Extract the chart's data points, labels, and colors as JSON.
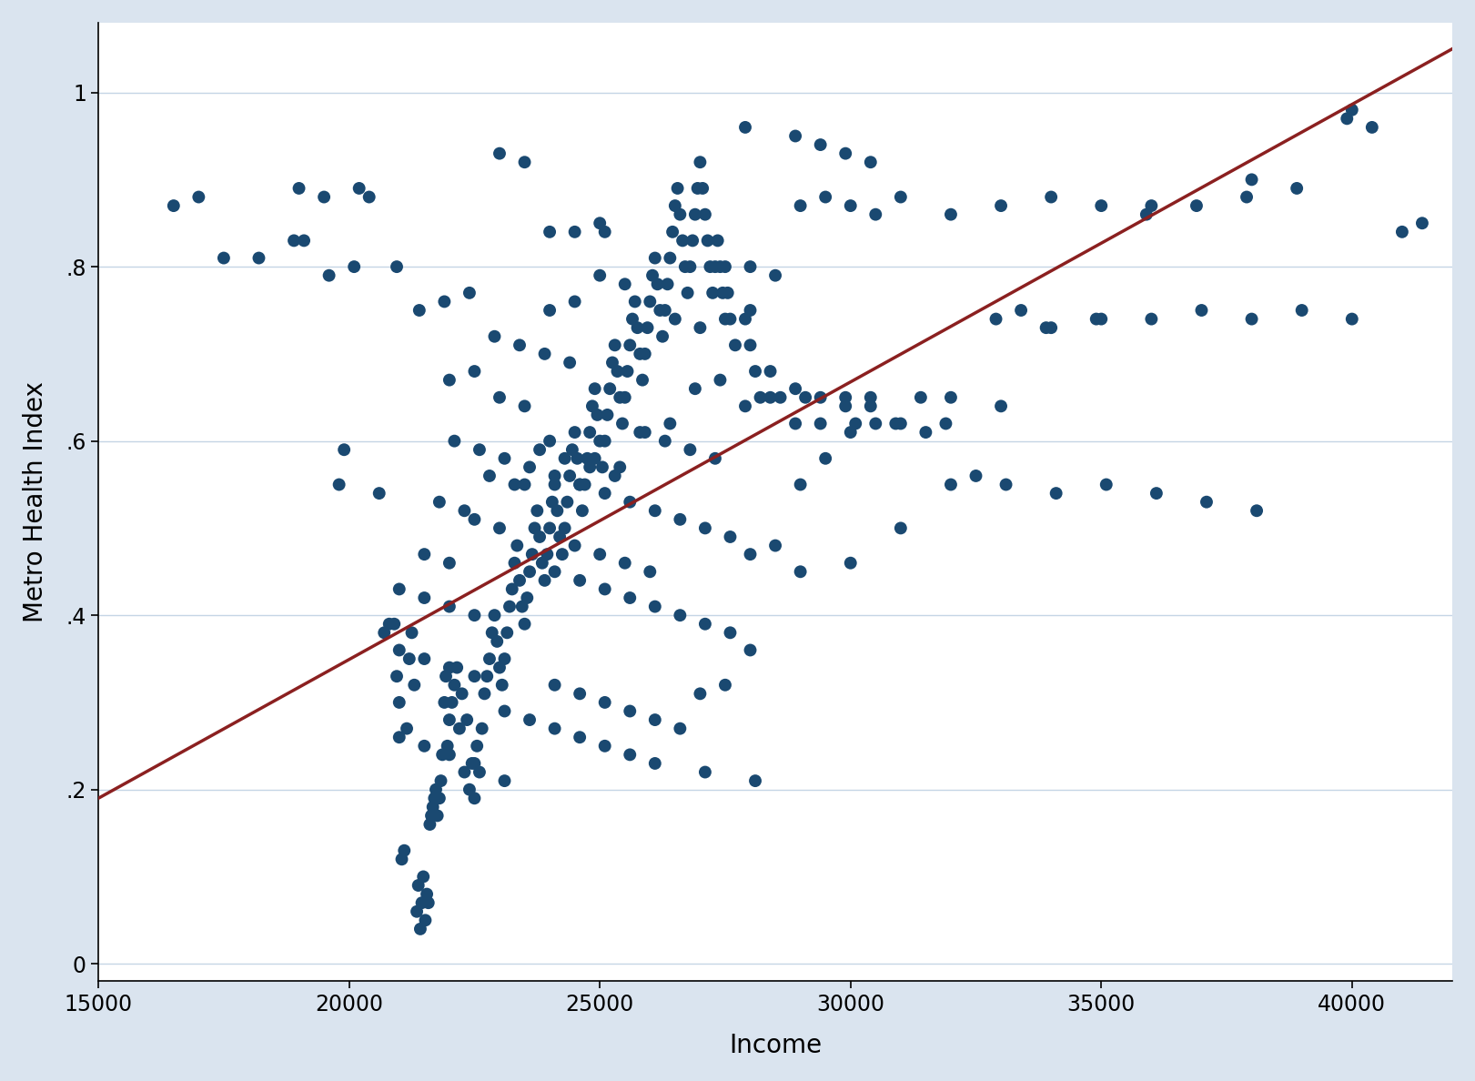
{
  "xlabel": "Income",
  "ylabel": "Metro Health Index",
  "xlim": [
    15000,
    42000
  ],
  "ylim": [
    -0.02,
    1.08
  ],
  "xticks": [
    15000,
    20000,
    25000,
    30000,
    35000,
    40000
  ],
  "yticks": [
    0,
    0.2,
    0.4,
    0.6,
    0.8,
    1.0
  ],
  "ytick_labels": [
    "0",
    ".2",
    ".4",
    ".6",
    ".8",
    "1"
  ],
  "scatter_color": "#1a4971",
  "line_color": "#8b2020",
  "line_x": [
    15000,
    42000
  ],
  "line_y": [
    0.19,
    1.05
  ],
  "background_color": "#dae4ef",
  "plot_bg_color": "#ffffff",
  "grid_color": "#c5d5e5",
  "marker_size": 100,
  "font_size_labels": 20,
  "font_size_ticks": 17,
  "scatter_points": [
    [
      16500,
      0.87
    ],
    [
      18200,
      0.81
    ],
    [
      18900,
      0.83
    ],
    [
      19100,
      0.83
    ],
    [
      19600,
      0.79
    ],
    [
      19800,
      0.55
    ],
    [
      19900,
      0.59
    ],
    [
      20100,
      0.8
    ],
    [
      20200,
      0.89
    ],
    [
      20400,
      0.88
    ],
    [
      20600,
      0.54
    ],
    [
      20700,
      0.38
    ],
    [
      20800,
      0.39
    ],
    [
      20900,
      0.39
    ],
    [
      20950,
      0.33
    ],
    [
      21000,
      0.3
    ],
    [
      21050,
      0.12
    ],
    [
      21100,
      0.13
    ],
    [
      21150,
      0.27
    ],
    [
      21200,
      0.35
    ],
    [
      21250,
      0.38
    ],
    [
      21300,
      0.32
    ],
    [
      21350,
      0.06
    ],
    [
      21380,
      0.09
    ],
    [
      21420,
      0.04
    ],
    [
      21450,
      0.07
    ],
    [
      21480,
      0.1
    ],
    [
      21520,
      0.05
    ],
    [
      21550,
      0.08
    ],
    [
      21580,
      0.07
    ],
    [
      21610,
      0.16
    ],
    [
      21640,
      0.17
    ],
    [
      21670,
      0.18
    ],
    [
      21700,
      0.19
    ],
    [
      21730,
      0.2
    ],
    [
      21760,
      0.17
    ],
    [
      21800,
      0.19
    ],
    [
      21830,
      0.21
    ],
    [
      21860,
      0.24
    ],
    [
      21900,
      0.3
    ],
    [
      21930,
      0.33
    ],
    [
      21960,
      0.25
    ],
    [
      22000,
      0.28
    ],
    [
      22050,
      0.3
    ],
    [
      22100,
      0.32
    ],
    [
      22150,
      0.34
    ],
    [
      22200,
      0.27
    ],
    [
      22250,
      0.31
    ],
    [
      22300,
      0.22
    ],
    [
      22350,
      0.28
    ],
    [
      22400,
      0.2
    ],
    [
      22450,
      0.23
    ],
    [
      22500,
      0.19
    ],
    [
      22550,
      0.25
    ],
    [
      22600,
      0.22
    ],
    [
      22650,
      0.27
    ],
    [
      22700,
      0.31
    ],
    [
      22750,
      0.33
    ],
    [
      22800,
      0.35
    ],
    [
      22850,
      0.38
    ],
    [
      22900,
      0.4
    ],
    [
      22950,
      0.37
    ],
    [
      23000,
      0.34
    ],
    [
      23050,
      0.32
    ],
    [
      23100,
      0.35
    ],
    [
      23150,
      0.38
    ],
    [
      23200,
      0.41
    ],
    [
      23250,
      0.43
    ],
    [
      23300,
      0.46
    ],
    [
      23350,
      0.48
    ],
    [
      23400,
      0.44
    ],
    [
      23450,
      0.41
    ],
    [
      23500,
      0.39
    ],
    [
      23550,
      0.42
    ],
    [
      23600,
      0.45
    ],
    [
      23650,
      0.47
    ],
    [
      23700,
      0.5
    ],
    [
      23750,
      0.52
    ],
    [
      23800,
      0.49
    ],
    [
      23850,
      0.46
    ],
    [
      23900,
      0.44
    ],
    [
      23950,
      0.47
    ],
    [
      24000,
      0.5
    ],
    [
      24050,
      0.53
    ],
    [
      24100,
      0.55
    ],
    [
      24150,
      0.52
    ],
    [
      24200,
      0.49
    ],
    [
      24250,
      0.47
    ],
    [
      24300,
      0.5
    ],
    [
      24350,
      0.53
    ],
    [
      24400,
      0.56
    ],
    [
      24450,
      0.59
    ],
    [
      24500,
      0.61
    ],
    [
      24550,
      0.58
    ],
    [
      24600,
      0.55
    ],
    [
      24650,
      0.52
    ],
    [
      24700,
      0.55
    ],
    [
      24750,
      0.58
    ],
    [
      24800,
      0.61
    ],
    [
      24850,
      0.64
    ],
    [
      24900,
      0.66
    ],
    [
      24950,
      0.63
    ],
    [
      25000,
      0.6
    ],
    [
      25050,
      0.57
    ],
    [
      25100,
      0.6
    ],
    [
      25150,
      0.63
    ],
    [
      25200,
      0.66
    ],
    [
      25250,
      0.69
    ],
    [
      25300,
      0.71
    ],
    [
      25350,
      0.68
    ],
    [
      25400,
      0.65
    ],
    [
      25450,
      0.62
    ],
    [
      25500,
      0.65
    ],
    [
      25550,
      0.68
    ],
    [
      25600,
      0.71
    ],
    [
      25650,
      0.74
    ],
    [
      25700,
      0.76
    ],
    [
      25750,
      0.73
    ],
    [
      25800,
      0.7
    ],
    [
      25850,
      0.67
    ],
    [
      25900,
      0.7
    ],
    [
      25950,
      0.73
    ],
    [
      26000,
      0.76
    ],
    [
      26050,
      0.79
    ],
    [
      26100,
      0.81
    ],
    [
      26150,
      0.78
    ],
    [
      26200,
      0.75
    ],
    [
      26250,
      0.72
    ],
    [
      26300,
      0.75
    ],
    [
      26350,
      0.78
    ],
    [
      26400,
      0.81
    ],
    [
      26450,
      0.84
    ],
    [
      26500,
      0.87
    ],
    [
      26550,
      0.89
    ],
    [
      26600,
      0.86
    ],
    [
      26650,
      0.83
    ],
    [
      26700,
      0.8
    ],
    [
      26750,
      0.77
    ],
    [
      26800,
      0.8
    ],
    [
      26850,
      0.83
    ],
    [
      26900,
      0.86
    ],
    [
      26950,
      0.89
    ],
    [
      27000,
      0.92
    ],
    [
      27050,
      0.89
    ],
    [
      27100,
      0.86
    ],
    [
      27150,
      0.83
    ],
    [
      27200,
      0.8
    ],
    [
      27250,
      0.77
    ],
    [
      27300,
      0.8
    ],
    [
      27350,
      0.83
    ],
    [
      27400,
      0.8
    ],
    [
      27450,
      0.77
    ],
    [
      27500,
      0.8
    ],
    [
      27550,
      0.77
    ],
    [
      27600,
      0.74
    ],
    [
      27700,
      0.71
    ],
    [
      27900,
      0.74
    ],
    [
      28000,
      0.71
    ],
    [
      28100,
      0.68
    ],
    [
      28200,
      0.65
    ],
    [
      28400,
      0.68
    ],
    [
      28600,
      0.65
    ],
    [
      28900,
      0.62
    ],
    [
      29100,
      0.65
    ],
    [
      29400,
      0.62
    ],
    [
      29900,
      0.65
    ],
    [
      30100,
      0.62
    ],
    [
      30400,
      0.65
    ],
    [
      30900,
      0.62
    ],
    [
      31400,
      0.65
    ],
    [
      31900,
      0.62
    ],
    [
      32900,
      0.74
    ],
    [
      33400,
      0.75
    ],
    [
      33900,
      0.73
    ],
    [
      34900,
      0.74
    ],
    [
      35900,
      0.86
    ],
    [
      36900,
      0.87
    ],
    [
      37900,
      0.88
    ],
    [
      38900,
      0.89
    ],
    [
      39900,
      0.97
    ],
    [
      40400,
      0.96
    ],
    [
      41400,
      0.85
    ],
    [
      20950,
      0.8
    ],
    [
      21400,
      0.75
    ],
    [
      21900,
      0.76
    ],
    [
      22400,
      0.77
    ],
    [
      22900,
      0.72
    ],
    [
      23400,
      0.71
    ],
    [
      23900,
      0.7
    ],
    [
      24400,
      0.69
    ],
    [
      24900,
      0.58
    ],
    [
      25400,
      0.57
    ],
    [
      25900,
      0.61
    ],
    [
      26400,
      0.62
    ],
    [
      26900,
      0.66
    ],
    [
      27400,
      0.67
    ],
    [
      27900,
      0.64
    ],
    [
      28400,
      0.65
    ],
    [
      28900,
      0.66
    ],
    [
      29400,
      0.65
    ],
    [
      29900,
      0.64
    ],
    [
      30400,
      0.64
    ],
    [
      31000,
      0.62
    ],
    [
      31500,
      0.61
    ],
    [
      32000,
      0.55
    ],
    [
      32500,
      0.56
    ],
    [
      33100,
      0.55
    ],
    [
      34100,
      0.54
    ],
    [
      35100,
      0.55
    ],
    [
      36100,
      0.54
    ],
    [
      37100,
      0.53
    ],
    [
      38100,
      0.52
    ],
    [
      28900,
      0.95
    ],
    [
      29400,
      0.94
    ],
    [
      29900,
      0.93
    ],
    [
      30400,
      0.92
    ],
    [
      27900,
      0.96
    ],
    [
      17000,
      0.88
    ],
    [
      17500,
      0.81
    ],
    [
      19000,
      0.89
    ],
    [
      19500,
      0.88
    ],
    [
      23000,
      0.93
    ],
    [
      23500,
      0.92
    ],
    [
      24000,
      0.84
    ],
    [
      24500,
      0.84
    ],
    [
      25000,
      0.85
    ],
    [
      25100,
      0.84
    ],
    [
      28000,
      0.8
    ],
    [
      28500,
      0.79
    ],
    [
      29000,
      0.87
    ],
    [
      29500,
      0.88
    ],
    [
      30000,
      0.87
    ],
    [
      30500,
      0.86
    ],
    [
      31000,
      0.88
    ],
    [
      32000,
      0.86
    ],
    [
      33000,
      0.87
    ],
    [
      34000,
      0.88
    ],
    [
      35000,
      0.87
    ],
    [
      36000,
      0.87
    ],
    [
      38000,
      0.9
    ],
    [
      40000,
      0.98
    ],
    [
      22100,
      0.6
    ],
    [
      22600,
      0.59
    ],
    [
      23100,
      0.58
    ],
    [
      23600,
      0.57
    ],
    [
      24100,
      0.56
    ],
    [
      24600,
      0.55
    ],
    [
      25100,
      0.54
    ],
    [
      25600,
      0.53
    ],
    [
      26100,
      0.52
    ],
    [
      26600,
      0.51
    ],
    [
      27100,
      0.5
    ],
    [
      27600,
      0.49
    ],
    [
      24100,
      0.45
    ],
    [
      24600,
      0.44
    ],
    [
      25100,
      0.43
    ],
    [
      25600,
      0.42
    ],
    [
      26100,
      0.41
    ],
    [
      26600,
      0.4
    ],
    [
      27100,
      0.39
    ],
    [
      27600,
      0.38
    ],
    [
      23100,
      0.29
    ],
    [
      23600,
      0.28
    ],
    [
      24100,
      0.27
    ],
    [
      24600,
      0.26
    ],
    [
      25100,
      0.25
    ],
    [
      25600,
      0.24
    ],
    [
      26100,
      0.23
    ],
    [
      27100,
      0.22
    ],
    [
      28100,
      0.21
    ],
    [
      23100,
      0.21
    ],
    [
      24100,
      0.32
    ],
    [
      24600,
      0.31
    ],
    [
      25100,
      0.3
    ],
    [
      25600,
      0.29
    ],
    [
      26100,
      0.28
    ],
    [
      26600,
      0.27
    ],
    [
      21500,
      0.47
    ],
    [
      22000,
      0.46
    ],
    [
      22500,
      0.51
    ],
    [
      23000,
      0.5
    ],
    [
      23500,
      0.55
    ],
    [
      24000,
      0.6
    ],
    [
      24500,
      0.48
    ],
    [
      25000,
      0.47
    ],
    [
      25500,
      0.46
    ],
    [
      26000,
      0.45
    ],
    [
      22000,
      0.67
    ],
    [
      22500,
      0.68
    ],
    [
      23000,
      0.65
    ],
    [
      23500,
      0.64
    ],
    [
      24000,
      0.75
    ],
    [
      24500,
      0.76
    ],
    [
      25000,
      0.79
    ],
    [
      25500,
      0.78
    ],
    [
      26500,
      0.74
    ],
    [
      27000,
      0.73
    ],
    [
      27500,
      0.74
    ],
    [
      28000,
      0.75
    ],
    [
      21800,
      0.53
    ],
    [
      22300,
      0.52
    ],
    [
      22800,
      0.56
    ],
    [
      23300,
      0.55
    ],
    [
      23800,
      0.59
    ],
    [
      24300,
      0.58
    ],
    [
      24800,
      0.57
    ],
    [
      25300,
      0.56
    ],
    [
      25800,
      0.61
    ],
    [
      26300,
      0.6
    ],
    [
      26800,
      0.59
    ],
    [
      27300,
      0.58
    ],
    [
      21000,
      0.43
    ],
    [
      21500,
      0.42
    ],
    [
      22000,
      0.41
    ],
    [
      22500,
      0.4
    ],
    [
      21000,
      0.36
    ],
    [
      21500,
      0.35
    ],
    [
      22000,
      0.34
    ],
    [
      22500,
      0.33
    ],
    [
      21000,
      0.26
    ],
    [
      21500,
      0.25
    ],
    [
      22000,
      0.24
    ],
    [
      22500,
      0.23
    ],
    [
      27000,
      0.31
    ],
    [
      27500,
      0.32
    ],
    [
      28000,
      0.47
    ],
    [
      28500,
      0.48
    ],
    [
      29000,
      0.55
    ],
    [
      29500,
      0.58
    ],
    [
      30000,
      0.61
    ],
    [
      30500,
      0.62
    ],
    [
      28000,
      0.36
    ],
    [
      29000,
      0.45
    ],
    [
      30000,
      0.46
    ],
    [
      31000,
      0.5
    ],
    [
      32000,
      0.65
    ],
    [
      33000,
      0.64
    ],
    [
      34000,
      0.73
    ],
    [
      35000,
      0.74
    ],
    [
      36000,
      0.74
    ],
    [
      37000,
      0.75
    ],
    [
      38000,
      0.74
    ],
    [
      39000,
      0.75
    ],
    [
      40000,
      0.74
    ],
    [
      41000,
      0.84
    ]
  ]
}
